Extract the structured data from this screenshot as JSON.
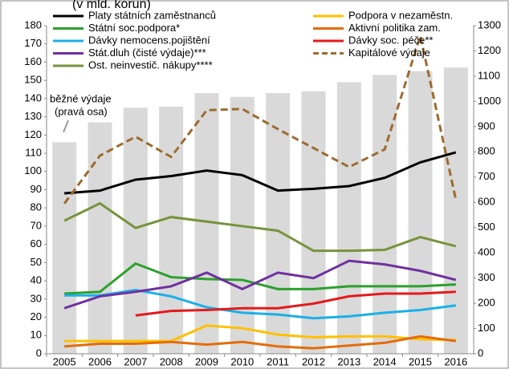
{
  "chart_data": {
    "type": "line",
    "title": "(v mld. korun)",
    "categories": [
      "2005",
      "2006",
      "2007",
      "2008",
      "2009",
      "2010",
      "2011",
      "2012",
      "2013",
      "2014",
      "2015",
      "2016"
    ],
    "ylim": [
      0,
      180
    ],
    "yticks": [
      0,
      10,
      20,
      30,
      40,
      50,
      60,
      70,
      80,
      90,
      100,
      110,
      120,
      130,
      140,
      150,
      160,
      170,
      180
    ],
    "y2lim": [
      0,
      1300
    ],
    "y2ticks": [
      0,
      100,
      200,
      300,
      400,
      500,
      600,
      700,
      800,
      900,
      1000,
      1100,
      1200,
      1300
    ],
    "bars": {
      "axis": "y2",
      "color": "#d9d9d9",
      "values": [
        838,
        917,
        975,
        979,
        1033,
        1018,
        1033,
        1040,
        1076,
        1105,
        1120,
        1134
      ]
    },
    "annotation": [
      "běžné výdaje",
      "(pravá osa)"
    ],
    "series": [
      {
        "name": "Platy státních zaměstnanců",
        "color": "#000000",
        "values": [
          88,
          89.5,
          95.5,
          97.5,
          100.5,
          98,
          89.5,
          90.5,
          92,
          96.5,
          105,
          110.5
        ]
      },
      {
        "name": "Státní soc.podpora*",
        "color": "#2ca02c",
        "values": [
          33,
          34,
          49.5,
          42,
          41,
          40.5,
          35.5,
          35.5,
          37,
          37,
          37,
          38
        ]
      },
      {
        "name": "Dávky nemocens.pojištění",
        "color": "#1ab0e8",
        "values": [
          32,
          32,
          35,
          31.5,
          25.5,
          22.5,
          21.5,
          19.5,
          20.5,
          22.5,
          24,
          26.5
        ]
      },
      {
        "name": "Stát.dluh (čisté výdaje)***",
        "color": "#7030a0",
        "values": [
          25,
          31.5,
          34,
          37,
          44.5,
          35.5,
          44.5,
          41.5,
          51,
          49,
          45.5,
          40.5
        ]
      },
      {
        "name": "Ost. neinvestič. nákupy****",
        "color": "#77933c",
        "values": [
          73,
          82.5,
          69,
          75,
          72.5,
          70,
          67.5,
          56.5,
          56.5,
          57,
          64,
          59
        ]
      },
      {
        "name": "Podpora v nezaměstn.",
        "color": "#ffc000",
        "values": [
          7,
          7,
          7,
          7,
          15.5,
          14,
          10.5,
          9,
          9.5,
          9.5,
          8,
          7.5
        ]
      },
      {
        "name": "Aktivní politika zam.",
        "color": "#e46c0a",
        "values": [
          4,
          5.5,
          5.5,
          6.5,
          5,
          6.5,
          4,
          3,
          4.5,
          6,
          9.5,
          7
        ]
      },
      {
        "name": "Dávky soc. péče**",
        "color": "#e41a1c",
        "values": [
          null,
          null,
          21,
          23.5,
          24,
          25,
          25,
          27.5,
          31.5,
          33,
          33,
          34
        ]
      },
      {
        "name": "Kapitálové výdaje",
        "color": "#9c6b30",
        "dashed": true,
        "axis": "y2",
        "values": [
          595,
          785,
          860,
          780,
          965,
          970,
          890,
          815,
          740,
          810,
          1260,
          610
        ]
      }
    ]
  }
}
